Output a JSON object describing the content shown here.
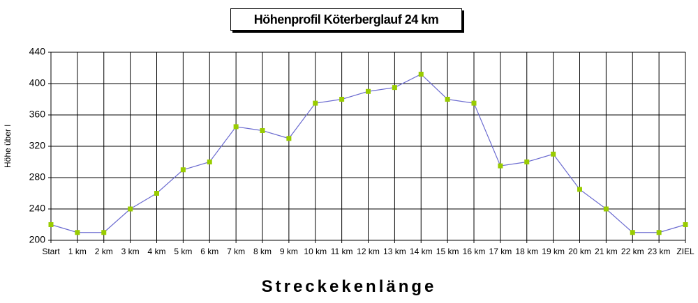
{
  "chart_data": {
    "type": "line",
    "title": "Höhenprofil Köterberglauf 24 km",
    "x_label": "Streckekenlänge",
    "y_label": "Höhe über l",
    "categories": [
      "Start",
      "1 km",
      "2 km",
      "3 km",
      "4 km",
      "5 km",
      "6 km",
      "7 km",
      "8 km",
      "9 km",
      "10 km",
      "11 km",
      "12 km",
      "13 km",
      "14 km",
      "15 km",
      "16 km",
      "17 km",
      "18 km",
      "19 km",
      "20 km",
      "21 km",
      "22 km",
      "23 km",
      "ZIEL"
    ],
    "values": [
      220,
      210,
      210,
      240,
      260,
      290,
      300,
      345,
      340,
      330,
      375,
      380,
      390,
      395,
      412,
      380,
      375,
      295,
      300,
      310,
      265,
      240,
      210,
      210,
      220
    ],
    "color": "#6b6bd0",
    "marker_color": "#99cc00",
    "ylim": [
      200,
      440
    ],
    "yticks": [
      200,
      240,
      280,
      320,
      360,
      400,
      440
    ],
    "grid": true
  }
}
